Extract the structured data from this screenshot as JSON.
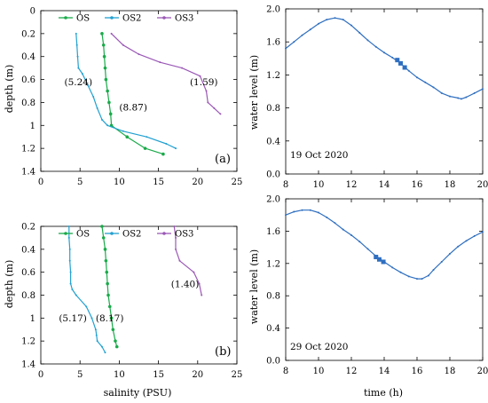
{
  "chart_data": [
    {
      "id": "a_salinity",
      "type": "line",
      "panel_label": "(a)",
      "xlabel": "",
      "ylabel": "depth (m)",
      "xlim": [
        0,
        25
      ],
      "ylim": [
        1.4,
        0
      ],
      "x_ticks": [
        0,
        5,
        10,
        15,
        20,
        25
      ],
      "y_ticks": [
        0,
        0.2,
        0.4,
        0.6,
        0.8,
        1,
        1.2,
        1.4
      ],
      "y_tick_labels": [
        "0",
        "0.2",
        "0.4",
        "0.6",
        "0.8",
        "1",
        "1.2",
        "1.4"
      ],
      "x_axis_at_top": true,
      "legend_position": "top",
      "series": [
        {
          "name": "OS",
          "color": "#1aaa4a",
          "marker": "dot",
          "points": [
            [
              7.8,
              0.2
            ],
            [
              8.0,
              0.3
            ],
            [
              8.1,
              0.4
            ],
            [
              8.2,
              0.5
            ],
            [
              8.3,
              0.6
            ],
            [
              8.5,
              0.7
            ],
            [
              8.7,
              0.8
            ],
            [
              8.9,
              0.9
            ],
            [
              9.0,
              1.0
            ],
            [
              11.0,
              1.1
            ],
            [
              13.3,
              1.2
            ],
            [
              15.6,
              1.25
            ]
          ]
        },
        {
          "name": "OS2",
          "color": "#22a1d1",
          "marker": "none",
          "points": [
            [
              4.5,
              0.2
            ],
            [
              4.6,
              0.3
            ],
            [
              4.7,
              0.4
            ],
            [
              4.8,
              0.5
            ],
            [
              5.3,
              0.55
            ],
            [
              6.0,
              0.65
            ],
            [
              6.7,
              0.75
            ],
            [
              7.2,
              0.85
            ],
            [
              7.8,
              0.95
            ],
            [
              8.5,
              1.0
            ],
            [
              10.5,
              1.05
            ],
            [
              13.5,
              1.1
            ],
            [
              16.0,
              1.16
            ],
            [
              17.2,
              1.2
            ]
          ]
        },
        {
          "name": "OS3",
          "color": "#9b59b6",
          "marker": "none",
          "points": [
            [
              9.0,
              0.2
            ],
            [
              10.5,
              0.3
            ],
            [
              12.5,
              0.38
            ],
            [
              15.2,
              0.45
            ],
            [
              18.0,
              0.5
            ],
            [
              20.3,
              0.57
            ],
            [
              21.1,
              0.7
            ],
            [
              21.3,
              0.8
            ],
            [
              22.1,
              0.85
            ],
            [
              22.9,
              0.9
            ]
          ]
        }
      ],
      "annotations": [
        {
          "text": "(5.24)",
          "x": 3.0,
          "y": 0.65
        },
        {
          "text": "(8.87)",
          "x": 10.0,
          "y": 0.87
        },
        {
          "text": "(1.59)",
          "x": 19.0,
          "y": 0.65
        }
      ]
    },
    {
      "id": "a_water_level",
      "type": "line",
      "panel_label": "",
      "xlabel": "",
      "ylabel": "water level (m)",
      "xlim": [
        8,
        20
      ],
      "ylim": [
        0,
        2.0
      ],
      "x_ticks": [
        8,
        10,
        12,
        14,
        16,
        18,
        20
      ],
      "y_ticks": [
        0,
        0.4,
        0.8,
        1.2,
        1.6,
        2.0
      ],
      "y_tick_labels": [
        "0.0",
        "0.4",
        "0.8",
        "1.2",
        "1.6",
        "2.0"
      ],
      "date_label": "19 Oct 2020",
      "series": [
        {
          "name": "",
          "color": "#2f6fc0",
          "points": [
            [
              8.0,
              1.52
            ],
            [
              8.5,
              1.6
            ],
            [
              9.0,
              1.68
            ],
            [
              9.5,
              1.75
            ],
            [
              10.0,
              1.82
            ],
            [
              10.5,
              1.87
            ],
            [
              11.0,
              1.89
            ],
            [
              11.5,
              1.87
            ],
            [
              12.0,
              1.8
            ],
            [
              12.5,
              1.71
            ],
            [
              13.0,
              1.62
            ],
            [
              13.5,
              1.54
            ],
            [
              14.0,
              1.47
            ],
            [
              14.5,
              1.41
            ],
            [
              15.0,
              1.34
            ],
            [
              15.5,
              1.25
            ],
            [
              16.0,
              1.17
            ],
            [
              16.5,
              1.11
            ],
            [
              17.0,
              1.05
            ],
            [
              17.5,
              0.98
            ],
            [
              18.0,
              0.94
            ],
            [
              18.5,
              0.92
            ],
            [
              18.7,
              0.91
            ],
            [
              19.0,
              0.93
            ],
            [
              19.5,
              0.98
            ],
            [
              20.0,
              1.03
            ]
          ]
        }
      ],
      "markers": [
        [
          14.8,
          1.38
        ],
        [
          15.0,
          1.34
        ],
        [
          15.25,
          1.29
        ]
      ],
      "marker_color": "#2f6fc0"
    },
    {
      "id": "b_salinity",
      "type": "line",
      "panel_label": "(b)",
      "xlabel": "salinity (PSU)",
      "ylabel": "depth (m)",
      "xlim": [
        0,
        25
      ],
      "ylim": [
        1.4,
        0.2
      ],
      "x_ticks": [
        0,
        5,
        10,
        15,
        20,
        25
      ],
      "y_ticks": [
        0.2,
        0.4,
        0.6,
        0.8,
        1,
        1.2,
        1.4
      ],
      "y_tick_labels": [
        "0.2",
        "0.4",
        "0.6",
        "0.8",
        "1",
        "1.2",
        "1.4"
      ],
      "legend_position": "top",
      "series": [
        {
          "name": "OS",
          "color": "#1aaa4a",
          "marker": "dot",
          "points": [
            [
              7.8,
              0.2
            ],
            [
              8.0,
              0.3
            ],
            [
              8.2,
              0.4
            ],
            [
              8.3,
              0.5
            ],
            [
              8.4,
              0.6
            ],
            [
              8.5,
              0.7
            ],
            [
              8.6,
              0.8
            ],
            [
              8.8,
              0.9
            ],
            [
              9.0,
              1.0
            ],
            [
              9.2,
              1.1
            ],
            [
              9.5,
              1.2
            ],
            [
              9.7,
              1.25
            ]
          ]
        },
        {
          "name": "OS2",
          "color": "#22a1d1",
          "marker": "none",
          "points": [
            [
              3.6,
              0.2
            ],
            [
              3.6,
              0.3
            ],
            [
              3.7,
              0.4
            ],
            [
              3.7,
              0.5
            ],
            [
              3.8,
              0.6
            ],
            [
              3.8,
              0.7
            ],
            [
              4.0,
              0.75
            ],
            [
              4.5,
              0.8
            ],
            [
              5.8,
              0.9
            ],
            [
              6.5,
              1.0
            ],
            [
              7.0,
              1.1
            ],
            [
              7.1,
              1.15
            ],
            [
              7.2,
              1.2
            ],
            [
              7.8,
              1.25
            ],
            [
              8.2,
              1.3
            ]
          ]
        },
        {
          "name": "OS3",
          "color": "#9b59b6",
          "marker": "none",
          "points": [
            [
              17.0,
              0.2
            ],
            [
              17.2,
              0.3
            ],
            [
              17.2,
              0.4
            ],
            [
              17.7,
              0.5
            ],
            [
              19.5,
              0.6
            ],
            [
              20.2,
              0.7
            ],
            [
              20.5,
              0.8
            ]
          ]
        }
      ],
      "annotations": [
        {
          "text": "(5.17)",
          "x": 2.3,
          "y": 1.03
        },
        {
          "text": "(8.17)",
          "x": 7.0,
          "y": 1.03
        },
        {
          "text": "(1.40)",
          "x": 16.6,
          "y": 0.73
        }
      ]
    },
    {
      "id": "b_water_level",
      "type": "line",
      "panel_label": "",
      "xlabel": "time (h)",
      "ylabel": "water level (m)",
      "xlim": [
        8,
        20
      ],
      "ylim": [
        0,
        2.0
      ],
      "x_ticks": [
        8,
        10,
        12,
        14,
        16,
        18,
        20
      ],
      "y_ticks": [
        0,
        0.4,
        0.8,
        1.2,
        1.6,
        2.0
      ],
      "y_tick_labels": [
        "0.0",
        "0.4",
        "0.8",
        "1.2",
        "1.6",
        "2.0"
      ],
      "date_label": "29 Oct 2020",
      "series": [
        {
          "name": "",
          "color": "#2f6fc0",
          "points": [
            [
              8.0,
              1.8
            ],
            [
              8.5,
              1.84
            ],
            [
              9.0,
              1.86
            ],
            [
              9.5,
              1.86
            ],
            [
              10.0,
              1.83
            ],
            [
              10.5,
              1.77
            ],
            [
              11.0,
              1.7
            ],
            [
              11.5,
              1.62
            ],
            [
              12.0,
              1.55
            ],
            [
              12.5,
              1.47
            ],
            [
              13.0,
              1.38
            ],
            [
              13.5,
              1.29
            ],
            [
              14.0,
              1.22
            ],
            [
              14.5,
              1.15
            ],
            [
              15.0,
              1.09
            ],
            [
              15.5,
              1.04
            ],
            [
              16.0,
              1.01
            ],
            [
              16.3,
              1.01
            ],
            [
              16.7,
              1.05
            ],
            [
              17.0,
              1.12
            ],
            [
              17.5,
              1.22
            ],
            [
              18.0,
              1.32
            ],
            [
              18.5,
              1.41
            ],
            [
              19.0,
              1.48
            ],
            [
              19.5,
              1.54
            ],
            [
              20.0,
              1.59
            ]
          ]
        }
      ],
      "markers": [
        [
          13.5,
          1.28
        ],
        [
          13.7,
          1.25
        ],
        [
          13.95,
          1.22
        ]
      ],
      "marker_color": "#2f6fc0"
    }
  ]
}
